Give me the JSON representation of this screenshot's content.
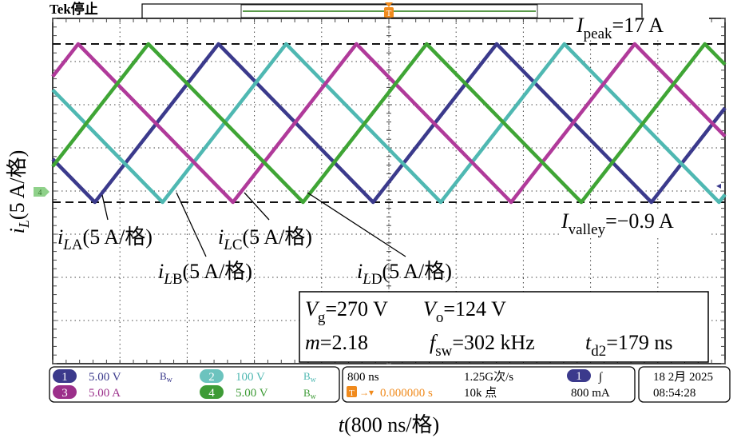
{
  "header": {
    "status": "Tek停止",
    "trigger_marker": "T"
  },
  "annotations": {
    "ipeak": {
      "sym": "I",
      "sub": "peak",
      "value": "=17 A"
    },
    "ivalley": {
      "sym": "I",
      "sub": "valley",
      "value": "=−0.9 A"
    },
    "labels": [
      {
        "sym": "i",
        "sub1": "L",
        "sub2": "A",
        "unit": "(5 A/格)"
      },
      {
        "sym": "i",
        "sub1": "L",
        "sub2": "B",
        "unit": "(5 A/格)"
      },
      {
        "sym": "i",
        "sub1": "L",
        "sub2": "C",
        "unit": "(5 A/格)"
      },
      {
        "sym": "i",
        "sub1": "L",
        "sub2": "D",
        "unit": "(5 A/格)"
      }
    ],
    "ground_marker": "4"
  },
  "info_box": {
    "vg_sym": "V",
    "vg_sub": "g",
    "vg_val": "=270 V",
    "vo_sym": "V",
    "vo_sub": "o",
    "vo_val": "=124 V",
    "m_sym": "m",
    "m_val": "=2.18",
    "fsw_sym": "f",
    "fsw_sub": "sw",
    "fsw_val": "=302 kHz",
    "td_sym": "t",
    "td_sub": "d2",
    "td_val": "=179 ns"
  },
  "status_bar": {
    "channels": [
      {
        "num": "1",
        "scale": "5.00 V",
        "bw": "B",
        "bw_sub": "w",
        "color": "#3b3a8c"
      },
      {
        "num": "2",
        "scale": "100 V",
        "bw": "B",
        "bw_sub": "w",
        "color": "#4fb8b2"
      },
      {
        "num": "3",
        "scale": "5.00 A",
        "color": "#9b2f8a"
      },
      {
        "num": "4",
        "scale": "5.00 V",
        "bw": "B",
        "bw_sub": "w",
        "color": "#3e9b36"
      }
    ],
    "timebase": "800 ns",
    "trigger_pos": "0.000000 s",
    "sample_rate": "1.25G次/s",
    "record_length": "10k 点",
    "trigger_channel": "1",
    "trigger_slope": "∫",
    "trigger_level": "800 mA",
    "date": "18 2月 2025",
    "time": "08:54:28"
  },
  "chart_data": {
    "type": "line",
    "xlabel_sym": "t",
    "xlabel": "(800 ns/格)",
    "ylabel_sym": "i",
    "ylabel_sub": "L",
    "ylabel": "(5 A/格)",
    "x_per_div_ns": 800,
    "y_per_div_A": 5,
    "xlim_ns": [
      -4000,
      4000
    ],
    "grid": true,
    "peak_A": 17,
    "valley_A": -0.9,
    "period_ns": 3311,
    "rise_ns": 1470,
    "series": [
      {
        "name": "iLA",
        "color": "#3b3a8c",
        "peak_time_ns": -2028
      },
      {
        "name": "iLB",
        "color": "#4fb8b2",
        "peak_time_ns": -1223
      },
      {
        "name": "iLC",
        "color": "#b03a9a",
        "peak_time_ns": -3697
      },
      {
        "name": "iLD",
        "color": "#3fa535",
        "peak_time_ns": -2862
      }
    ]
  }
}
